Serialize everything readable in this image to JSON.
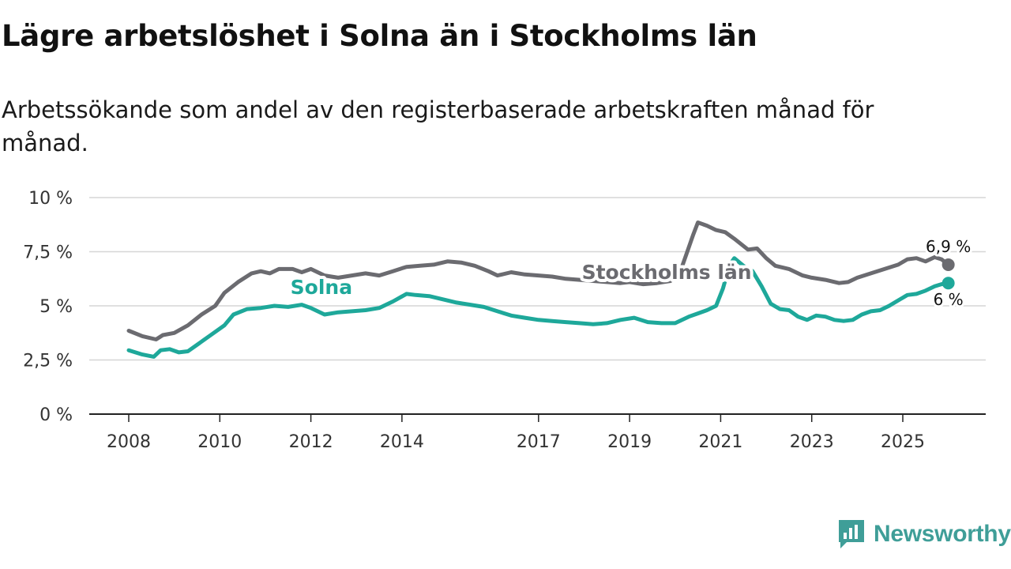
{
  "title": "Lägre arbetslöshet i Solna än i Stockholms län",
  "subtitle": "Arbetssökande som andel av den registerbaserade arbetskraften månad för månad.",
  "brand": {
    "name": "Newsworthy",
    "color": "#3f9e98"
  },
  "chart_data": {
    "type": "line",
    "title": "Lägre arbetslöshet i Solna än i Stockholms län",
    "subtitle": "Arbetssökande som andel av den registerbaserade arbetskraften månad för månad.",
    "xlabel": "",
    "ylabel": "",
    "xlim": [
      2008,
      2026.2
    ],
    "ylim": [
      0,
      10
    ],
    "grid": true,
    "y_ticks": [
      {
        "value": 0,
        "label": "0 %"
      },
      {
        "value": 2.5,
        "label": "2,5 %"
      },
      {
        "value": 5,
        "label": "5 %"
      },
      {
        "value": 7.5,
        "label": "7,5 %"
      },
      {
        "value": 10,
        "label": "10 %"
      }
    ],
    "x_ticks": [
      {
        "value": 2008,
        "label": "2008"
      },
      {
        "value": 2010,
        "label": "2010"
      },
      {
        "value": 2012,
        "label": "2012"
      },
      {
        "value": 2014,
        "label": "2014"
      },
      {
        "value": 2017,
        "label": "2017"
      },
      {
        "value": 2019,
        "label": "2019"
      },
      {
        "value": 2021,
        "label": "2021"
      },
      {
        "value": 2023,
        "label": "2023"
      },
      {
        "value": 2025,
        "label": "2025"
      }
    ],
    "series": [
      {
        "name": "Stockholms län",
        "color": "#6b6b70",
        "end_label": "6,9 %",
        "label_at": [
          2017.95,
          6.25
        ],
        "points": [
          [
            2008.0,
            3.85
          ],
          [
            2008.3,
            3.6
          ],
          [
            2008.6,
            3.45
          ],
          [
            2008.75,
            3.65
          ],
          [
            2009.0,
            3.75
          ],
          [
            2009.3,
            4.1
          ],
          [
            2009.6,
            4.6
          ],
          [
            2009.9,
            5.0
          ],
          [
            2010.1,
            5.6
          ],
          [
            2010.4,
            6.1
          ],
          [
            2010.7,
            6.5
          ],
          [
            2010.9,
            6.6
          ],
          [
            2011.1,
            6.5
          ],
          [
            2011.3,
            6.7
          ],
          [
            2011.6,
            6.7
          ],
          [
            2011.8,
            6.55
          ],
          [
            2012.0,
            6.7
          ],
          [
            2012.3,
            6.4
          ],
          [
            2012.6,
            6.3
          ],
          [
            2012.9,
            6.4
          ],
          [
            2013.2,
            6.5
          ],
          [
            2013.5,
            6.4
          ],
          [
            2013.8,
            6.6
          ],
          [
            2014.1,
            6.8
          ],
          [
            2014.4,
            6.85
          ],
          [
            2014.7,
            6.9
          ],
          [
            2015.0,
            7.05
          ],
          [
            2015.3,
            7.0
          ],
          [
            2015.6,
            6.85
          ],
          [
            2015.9,
            6.6
          ],
          [
            2016.1,
            6.4
          ],
          [
            2016.4,
            6.55
          ],
          [
            2016.7,
            6.45
          ],
          [
            2017.0,
            6.4
          ],
          [
            2017.3,
            6.35
          ],
          [
            2017.6,
            6.25
          ],
          [
            2017.9,
            6.2
          ],
          [
            2018.2,
            6.15
          ],
          [
            2018.5,
            6.1
          ],
          [
            2018.8,
            6.05
          ],
          [
            2019.0,
            6.1
          ],
          [
            2019.3,
            6.0
          ],
          [
            2019.6,
            6.05
          ],
          [
            2019.9,
            6.15
          ],
          [
            2020.1,
            6.5
          ],
          [
            2020.25,
            7.4
          ],
          [
            2020.4,
            8.3
          ],
          [
            2020.5,
            8.85
          ],
          [
            2020.7,
            8.7
          ],
          [
            2020.9,
            8.5
          ],
          [
            2021.1,
            8.4
          ],
          [
            2021.3,
            8.1
          ],
          [
            2021.6,
            7.6
          ],
          [
            2021.8,
            7.65
          ],
          [
            2022.0,
            7.2
          ],
          [
            2022.2,
            6.85
          ],
          [
            2022.5,
            6.7
          ],
          [
            2022.8,
            6.4
          ],
          [
            2023.0,
            6.3
          ],
          [
            2023.3,
            6.2
          ],
          [
            2023.6,
            6.05
          ],
          [
            2023.8,
            6.1
          ],
          [
            2024.0,
            6.3
          ],
          [
            2024.3,
            6.5
          ],
          [
            2024.6,
            6.7
          ],
          [
            2024.9,
            6.9
          ],
          [
            2025.1,
            7.15
          ],
          [
            2025.3,
            7.2
          ],
          [
            2025.5,
            7.05
          ],
          [
            2025.7,
            7.25
          ],
          [
            2025.85,
            7.15
          ],
          [
            2026.0,
            6.9
          ]
        ]
      },
      {
        "name": "Solna",
        "color": "#1ea89a",
        "end_label": "6 %",
        "label_at": [
          2011.55,
          5.55
        ],
        "points": [
          [
            2008.0,
            2.95
          ],
          [
            2008.3,
            2.75
          ],
          [
            2008.55,
            2.65
          ],
          [
            2008.7,
            2.95
          ],
          [
            2008.9,
            3.0
          ],
          [
            2009.1,
            2.85
          ],
          [
            2009.3,
            2.9
          ],
          [
            2009.5,
            3.2
          ],
          [
            2009.8,
            3.65
          ],
          [
            2010.1,
            4.1
          ],
          [
            2010.3,
            4.6
          ],
          [
            2010.6,
            4.85
          ],
          [
            2010.9,
            4.9
          ],
          [
            2011.2,
            5.0
          ],
          [
            2011.5,
            4.95
          ],
          [
            2011.8,
            5.05
          ],
          [
            2012.0,
            4.9
          ],
          [
            2012.3,
            4.6
          ],
          [
            2012.6,
            4.7
          ],
          [
            2012.9,
            4.75
          ],
          [
            2013.2,
            4.8
          ],
          [
            2013.5,
            4.9
          ],
          [
            2013.8,
            5.2
          ],
          [
            2014.1,
            5.55
          ],
          [
            2014.3,
            5.5
          ],
          [
            2014.6,
            5.45
          ],
          [
            2014.9,
            5.3
          ],
          [
            2015.2,
            5.15
          ],
          [
            2015.5,
            5.05
          ],
          [
            2015.8,
            4.95
          ],
          [
            2016.1,
            4.75
          ],
          [
            2016.4,
            4.55
          ],
          [
            2016.7,
            4.45
          ],
          [
            2017.0,
            4.35
          ],
          [
            2017.3,
            4.3
          ],
          [
            2017.6,
            4.25
          ],
          [
            2017.9,
            4.2
          ],
          [
            2018.2,
            4.15
          ],
          [
            2018.5,
            4.2
          ],
          [
            2018.8,
            4.35
          ],
          [
            2019.1,
            4.45
          ],
          [
            2019.4,
            4.25
          ],
          [
            2019.7,
            4.2
          ],
          [
            2020.0,
            4.2
          ],
          [
            2020.3,
            4.5
          ],
          [
            2020.5,
            4.65
          ],
          [
            2020.7,
            4.8
          ],
          [
            2020.9,
            5.0
          ],
          [
            2021.05,
            5.8
          ],
          [
            2021.2,
            6.9
          ],
          [
            2021.3,
            7.2
          ],
          [
            2021.5,
            6.85
          ],
          [
            2021.7,
            6.6
          ],
          [
            2021.9,
            5.9
          ],
          [
            2022.1,
            5.1
          ],
          [
            2022.3,
            4.85
          ],
          [
            2022.5,
            4.8
          ],
          [
            2022.7,
            4.5
          ],
          [
            2022.9,
            4.35
          ],
          [
            2023.1,
            4.55
          ],
          [
            2023.3,
            4.5
          ],
          [
            2023.5,
            4.35
          ],
          [
            2023.7,
            4.3
          ],
          [
            2023.9,
            4.35
          ],
          [
            2024.1,
            4.6
          ],
          [
            2024.3,
            4.75
          ],
          [
            2024.5,
            4.8
          ],
          [
            2024.7,
            5.0
          ],
          [
            2024.9,
            5.25
          ],
          [
            2025.1,
            5.5
          ],
          [
            2025.3,
            5.55
          ],
          [
            2025.5,
            5.7
          ],
          [
            2025.7,
            5.9
          ],
          [
            2025.85,
            6.0
          ],
          [
            2026.0,
            6.05
          ]
        ]
      }
    ]
  }
}
